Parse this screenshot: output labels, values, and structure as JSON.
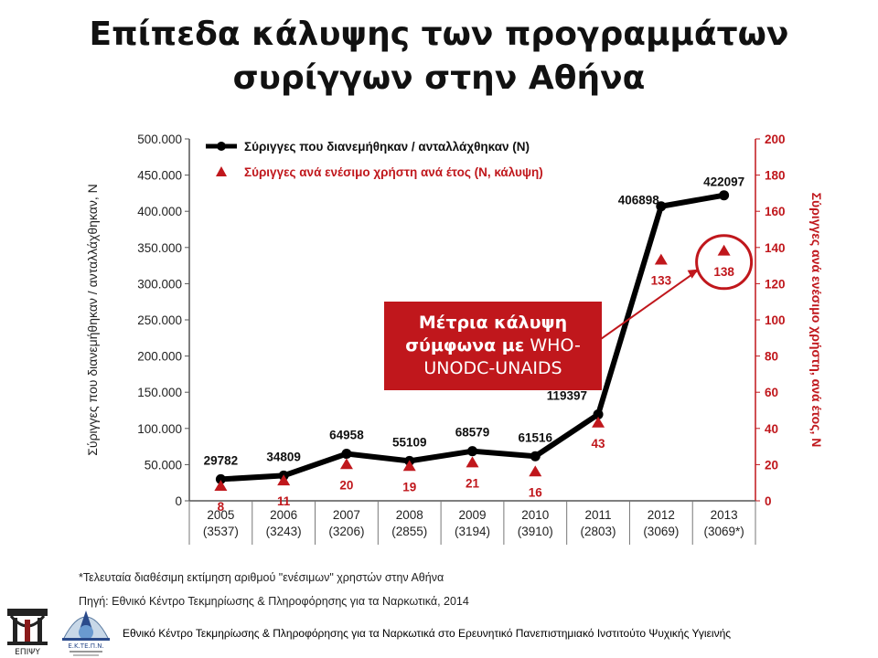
{
  "title": {
    "line1": "Επίπεδα κάλυψης των προγραμμάτων",
    "line2": "συρίγγων στην Αθήνα"
  },
  "callout": {
    "bold": "Μέτρια κάλυψη σύμφωνα με",
    "normal": "WHO-UNODC-UNAIDS"
  },
  "footnote": "*Τελευταία διαθέσιμη εκτίμηση αριθμού \"ενέσιμων\" χρηστών στην Αθήνα",
  "source": "Πηγή: Εθνικό Κέντρο Τεκμηρίωσης & Πληροφόρησης για τα Ναρκωτικά, 2014",
  "bottom_text": "Εθνικό Κέντρο Τεκμηρίωσης & Πληροφόρησης για τα Ναρκωτικά στο Ερευνητικό Πανεπιστημιακό Ινστιτούτο Ψυχικής Υγιεινής",
  "logos": {
    "left_caption": "ΕΠΙΨΥ",
    "right_caption": "Ε.Κ.ΤΕ.Π.Ν."
  },
  "colors": {
    "line": "#000000",
    "marker": "#c0171c",
    "callout_bg": "#c0171c",
    "right_axis": "#c0171c"
  },
  "chart_data": {
    "type": "line",
    "categories": [
      "2005\n(3537)",
      "2006\n(3243)",
      "2007\n(3206)",
      "2008\n(2855)",
      "2009\n(3194)",
      "2010\n(3910)",
      "2011\n(2803)",
      "2012\n(3069)",
      "2013\n(3069*)"
    ],
    "series": [
      {
        "name": "Σύριγγες που διανεμήθηκαν / ανταλλάχθηκαν (N)",
        "axis": "left",
        "values": [
          29782,
          34809,
          64958,
          55109,
          68579,
          61516,
          119397,
          406898,
          422097
        ],
        "labels": [
          "29782",
          "34809",
          "64958",
          "55109",
          "68579",
          "61516",
          "119397",
          "406898",
          "422097"
        ]
      },
      {
        "name": "Σύριγγες ανά ενέσιμο χρήστη ανά έτος (N, κάλυψη)",
        "axis": "right",
        "values": [
          8,
          11,
          20,
          19,
          21,
          16,
          43,
          133,
          138
        ],
        "labels": [
          "8",
          "11",
          "20",
          "19",
          "21",
          "16",
          "43",
          "133",
          "138"
        ]
      }
    ],
    "ylabel": "Σύριγγες που διανεμήθηκαν / ανταλλάχθηκαν, N",
    "y2label": "Σύριγγες ανά ενέσιμο χρήστη, ανά έτος, N",
    "ylim": [
      0,
      500000
    ],
    "y2lim": [
      0,
      200
    ],
    "yticks": [
      "0",
      "50.000",
      "100.000",
      "150.000",
      "200.000",
      "250.000",
      "300.000",
      "350.000",
      "400.000",
      "450.000",
      "500.000"
    ],
    "y2ticks": [
      "0",
      "20",
      "40",
      "60",
      "80",
      "100",
      "120",
      "140",
      "160",
      "180",
      "200"
    ],
    "highlight_index": 8,
    "legend_position": "top-left"
  }
}
